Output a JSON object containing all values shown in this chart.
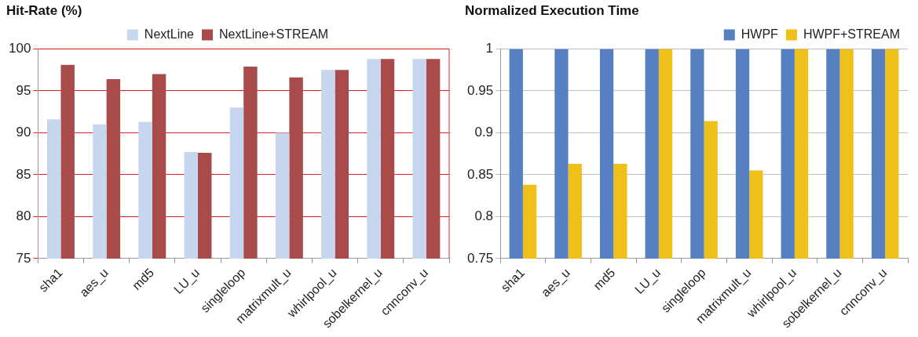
{
  "chart_data": [
    {
      "type": "bar",
      "title": "Hit-Rate (%)",
      "categories": [
        "sha1",
        "aes_u",
        "md5",
        "LU_u",
        "singleloop",
        "matrixmult_u",
        "whirlpool_u",
        "sobelkernel_u",
        "cnnconv_u"
      ],
      "series": [
        {
          "name": "NextLine",
          "color": "#c6d6ee",
          "values": [
            91.6,
            91.0,
            91.3,
            87.7,
            93.0,
            90.0,
            97.5,
            98.8,
            98.8
          ]
        },
        {
          "name": "NextLine+STREAM",
          "color": "#a94b4b",
          "values": [
            98.1,
            96.4,
            97.0,
            87.6,
            97.9,
            96.6,
            97.5,
            98.8,
            98.8
          ]
        }
      ],
      "ylim": [
        75,
        100
      ],
      "yticks": [
        75,
        80,
        85,
        90,
        95,
        100
      ],
      "grid": "y",
      "legend": "top"
    },
    {
      "type": "bar",
      "title": "Normalized Execution Time",
      "categories": [
        "sha1",
        "aes_u",
        "md5",
        "LU_u",
        "singleloop",
        "matrixmult_u",
        "whirlpool_u",
        "sobelkernel_u",
        "cnnconv_u"
      ],
      "series": [
        {
          "name": "HWPF",
          "color": "#5680c2",
          "values": [
            1,
            1,
            1,
            1,
            1,
            1,
            1,
            1,
            1
          ]
        },
        {
          "name": "HWPF+STREAM",
          "color": "#f0c01a",
          "values": [
            0.838,
            0.863,
            0.863,
            1,
            0.914,
            0.855,
            1,
            1,
            1
          ]
        }
      ],
      "ylim": [
        0.75,
        1
      ],
      "yticks": [
        0.75,
        0.8,
        0.85,
        0.9,
        0.95,
        1
      ],
      "grid": "y",
      "legend": "top right"
    }
  ]
}
